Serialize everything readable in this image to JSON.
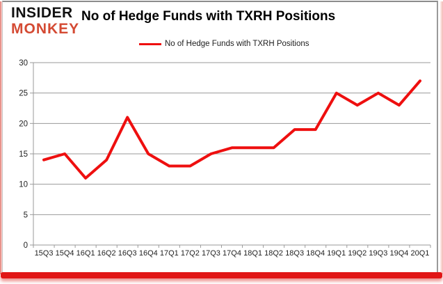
{
  "logo": {
    "line1": "INSIDER",
    "line2": "MONKEY"
  },
  "header": {
    "title": "No of Hedge Funds with TXRH Positions"
  },
  "legend": {
    "label": "No of Hedge Funds with TXRH Positions"
  },
  "colors": {
    "series_red": "#ee0f0f",
    "logo_orange": "#d44a33",
    "logo_black": "#121212",
    "grid_gray": "#9a9a9a",
    "axis_text": "#1f1f1f",
    "accent_bar_red": "#e11616"
  },
  "chart_data": {
    "type": "line",
    "title": "No of Hedge Funds with TXRH Positions",
    "categories": [
      "15Q3",
      "15Q4",
      "16Q1",
      "16Q2",
      "16Q3",
      "16Q4",
      "17Q1",
      "17Q2",
      "17Q3",
      "17Q4",
      "18Q1",
      "18Q2",
      "18Q3",
      "18Q4",
      "19Q1",
      "19Q2",
      "19Q3",
      "19Q4",
      "20Q1"
    ],
    "series": [
      {
        "name": "No of Hedge Funds with TXRH Positions",
        "color": "#ee0f0f",
        "values": [
          14,
          15,
          11,
          14,
          21,
          15,
          13,
          13,
          15,
          16,
          16,
          16,
          19,
          19,
          25,
          23,
          25,
          23,
          27
        ]
      }
    ],
    "xlabel": "",
    "ylabel": "",
    "ylim": [
      0,
      30
    ],
    "yticks": [
      0,
      5,
      10,
      15,
      20,
      25,
      30
    ],
    "grid": true,
    "legend_position": "top-center"
  }
}
